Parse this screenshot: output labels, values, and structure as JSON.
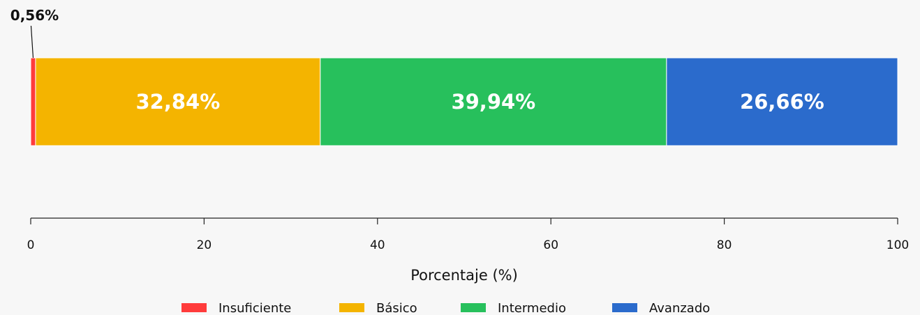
{
  "chart_data": {
    "type": "bar",
    "orientation": "horizontal",
    "stacked": true,
    "xlabel": "Porcentaje (%)",
    "xlim": [
      0,
      100
    ],
    "x_ticks": [
      "0",
      "20",
      "40",
      "60",
      "80",
      "100"
    ],
    "grid": false,
    "legend_position": "bottom",
    "series": [
      {
        "name": "Insuficiente",
        "value": 0.56,
        "label": "0,56%",
        "color": "#ff3b3b"
      },
      {
        "name": "Básico",
        "value": 32.84,
        "label": "32,84%",
        "color": "#f4b400"
      },
      {
        "name": "Intermedio",
        "value": 39.94,
        "label": "39,94%",
        "color": "#27c05c"
      },
      {
        "name": "Avanzado",
        "value": 26.66,
        "label": "26,66%",
        "color": "#2b6bcc"
      }
    ]
  }
}
